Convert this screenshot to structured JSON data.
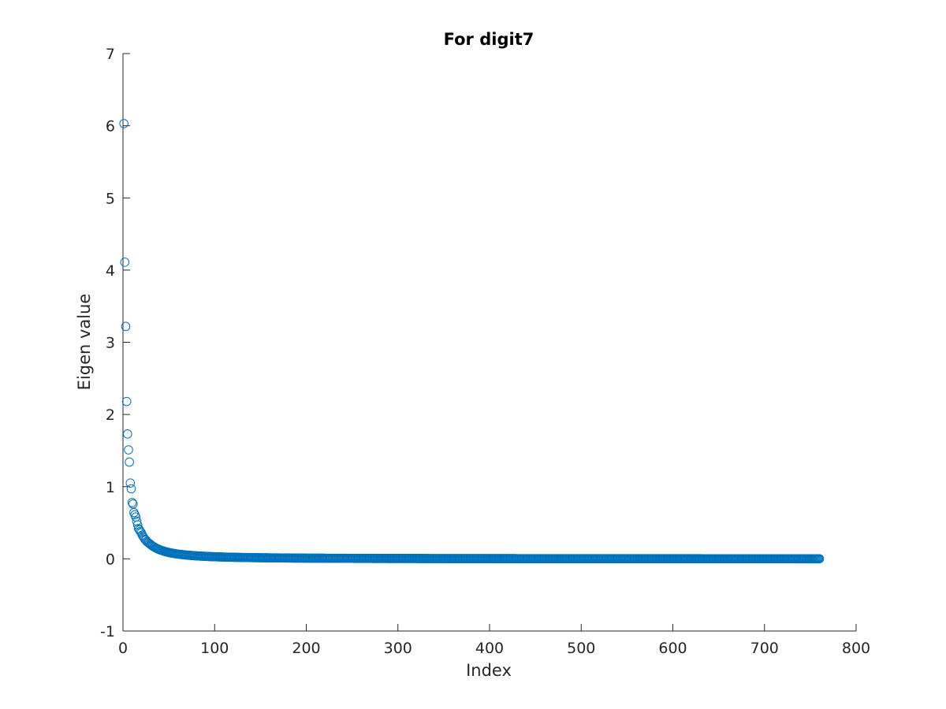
{
  "chart_data": {
    "type": "scatter",
    "title": "For digit7",
    "xlabel": "Index",
    "ylabel": "Eigen value",
    "xlim": [
      0,
      800
    ],
    "ylim": [
      -1,
      7
    ],
    "xticks": [
      0,
      100,
      200,
      300,
      400,
      500,
      600,
      700,
      800
    ],
    "yticks": [
      -1,
      0,
      1,
      2,
      3,
      4,
      5,
      6,
      7
    ],
    "grid": false,
    "marker": "open-circle",
    "color": "#0072BD",
    "series": [
      {
        "name": "",
        "x_range": [
          1,
          760
        ],
        "leading_points": [
          [
            1,
            6.03
          ],
          [
            2,
            4.11
          ],
          [
            3,
            3.22
          ],
          [
            4,
            2.18
          ],
          [
            5,
            1.73
          ],
          [
            6,
            1.51
          ],
          [
            7,
            1.34
          ],
          [
            8,
            1.05
          ],
          [
            9,
            0.97
          ],
          [
            10,
            0.78
          ],
          [
            11,
            0.76
          ],
          [
            12,
            0.64
          ],
          [
            13,
            0.61
          ],
          [
            14,
            0.58
          ],
          [
            15,
            0.52
          ],
          [
            16,
            0.47
          ],
          [
            17,
            0.42
          ],
          [
            18,
            0.4
          ],
          [
            19,
            0.38
          ],
          [
            20,
            0.36
          ],
          [
            21,
            0.33
          ],
          [
            22,
            0.31
          ],
          [
            23,
            0.29
          ],
          [
            24,
            0.27
          ],
          [
            25,
            0.26
          ],
          [
            26,
            0.24
          ],
          [
            27,
            0.23
          ],
          [
            28,
            0.22
          ],
          [
            29,
            0.21
          ],
          [
            30,
            0.2
          ]
        ],
        "tail_value_approx": 0.0
      }
    ]
  }
}
